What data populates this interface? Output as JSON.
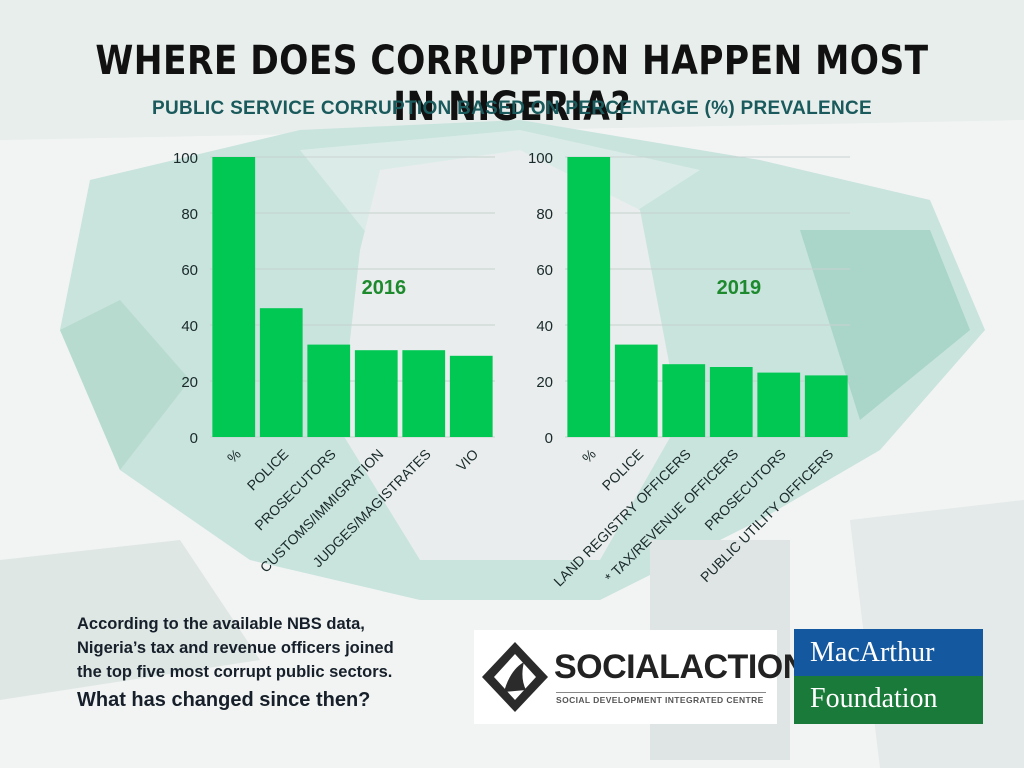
{
  "header": {
    "title": "WHERE DOES CORRUPTION HAPPEN MOST IN NIGERIA?",
    "subtitle": "PUBLIC SERVICE CORRUPTION BASED ON PERCENTAGE  (%) PREVALENCE"
  },
  "footer": {
    "line1": "According to the available NBS data,",
    "line2": "Nigeria’s tax and revenue officers joined",
    "line3": "the top five most corrupt public sectors.",
    "question": "What has changed since then?"
  },
  "logos": {
    "social_action_name": "SOCIALACTION",
    "social_action_tagline": "SOCIAL DEVELOPMENT INTEGRATED CENTRE",
    "macarthur_line1": "MacArthur",
    "macarthur_line2": "Foundation"
  },
  "colors": {
    "bar": "#00c853",
    "year_label": "#1e8a2e",
    "axis_text": "#1a2a2a"
  },
  "chart_data": [
    {
      "type": "bar",
      "title": "2016",
      "categories": [
        "%",
        "POLICE",
        "PROSECUTORS",
        "CUSTOMS/IMMIGRATION",
        "JUDGES/MAGISTRATES",
        "VIO"
      ],
      "values": [
        100,
        46,
        33,
        31,
        31,
        29
      ],
      "ylim": [
        0,
        100
      ],
      "yticks": [
        0,
        20,
        40,
        60,
        80,
        100
      ],
      "grid": true
    },
    {
      "type": "bar",
      "title": "2019",
      "categories": [
        "%",
        "POLICE",
        "LAND REGISTRY OFFICERS",
        "* TAX/REVENUE OFFICERS",
        "PROSECUTORS",
        "PUBLIC UTILITY OFFICERS"
      ],
      "values": [
        100,
        33,
        26,
        25,
        23,
        22
      ],
      "ylim": [
        0,
        100
      ],
      "yticks": [
        0,
        20,
        40,
        60,
        80,
        100
      ],
      "grid": true
    }
  ]
}
